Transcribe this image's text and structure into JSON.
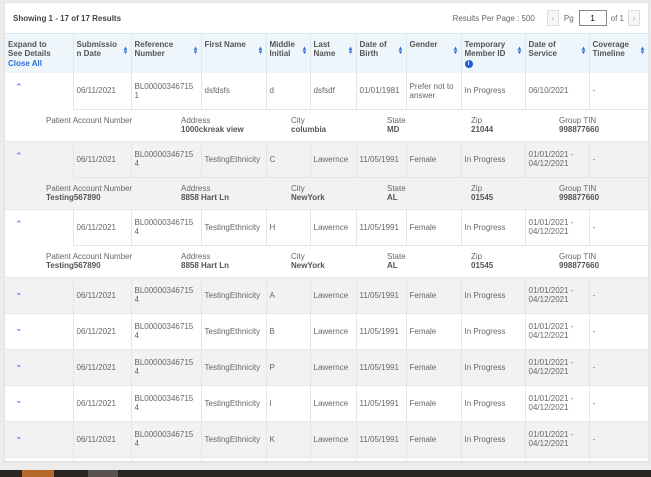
{
  "pagination": {
    "showing": "Showing 1 - 17 of 17 Results",
    "results_per_page": "Results Per Page : 500",
    "pg_label": "Pg",
    "page": "1",
    "of_label": "of 1",
    "prev_icon": "chevron-left",
    "next_icon": "chevron-right"
  },
  "header": {
    "expand": "Expand to See Details",
    "close_all": "Close All",
    "columns": [
      "Submission Date",
      "Reference Number",
      "First Name",
      "Middle Initial",
      "Last Name",
      "Date of Birth",
      "Gender",
      "Temporary Member ID",
      "Date of Service",
      "Coverage Timeline"
    ]
  },
  "detail_labels": [
    "Patient Account Number",
    "Address",
    "City",
    "State",
    "Zip",
    "Group TIN"
  ],
  "rows": [
    {
      "expanded": true,
      "cells": [
        "06/11/2021",
        "BL000003467151",
        "dsfdsfs",
        "d",
        "dsfsdf",
        "01/01/1981",
        "Prefer not to answer",
        "In Progress",
        "06/10/2021",
        "-"
      ],
      "detail": [
        "",
        "1000ckreak view",
        "columbia",
        "MD",
        "21044",
        "998877660"
      ]
    },
    {
      "expanded": true,
      "cells": [
        "06/11/2021",
        "BL000003467154",
        "TestingEthnicity",
        "C",
        "Lawernce",
        "11/05/1991",
        "Female",
        "In Progress",
        "01/01/2021 - 04/12/2021",
        "-"
      ],
      "detail": [
        "Testing567890",
        "8858 Hart Ln",
        "NewYork",
        "AL",
        "01545",
        "998877660"
      ]
    },
    {
      "expanded": true,
      "cells": [
        "06/11/2021",
        "BL000003467154",
        "TestingEthnicity",
        "H",
        "Lawernce",
        "11/05/1991",
        "Female",
        "In Progress",
        "01/01/2021 - 04/12/2021",
        "-"
      ],
      "detail": [
        "Testing567890",
        "8858 Hart Ln",
        "NewYork",
        "AL",
        "01545",
        "998877660"
      ]
    },
    {
      "expanded": false,
      "cells": [
        "06/11/2021",
        "BL000003467154",
        "TestingEthnicity",
        "A",
        "Lawernce",
        "11/05/1991",
        "Female",
        "In Progress",
        "01/01/2021 - 04/12/2021",
        "-"
      ]
    },
    {
      "expanded": false,
      "cells": [
        "06/11/2021",
        "BL000003467154",
        "TestingEthnicity",
        "B",
        "Lawernce",
        "11/05/1991",
        "Female",
        "In Progress",
        "01/01/2021 - 04/12/2021",
        "-"
      ]
    },
    {
      "expanded": false,
      "cells": [
        "06/11/2021",
        "BL000003467154",
        "TestingEthnicity",
        "P",
        "Lawernce",
        "11/05/1991",
        "Female",
        "In Progress",
        "01/01/2021 - 04/12/2021",
        "-"
      ]
    },
    {
      "expanded": false,
      "cells": [
        "06/11/2021",
        "BL000003467154",
        "TestingEthnicity",
        "I",
        "Lawernce",
        "11/05/1991",
        "Female",
        "In Progress",
        "01/01/2021 - 04/12/2021",
        "-"
      ]
    },
    {
      "expanded": false,
      "cells": [
        "06/11/2021",
        "BL000003467154",
        "TestingEthnicity",
        "K",
        "Lawernce",
        "11/05/1991",
        "Female",
        "In Progress",
        "01/01/2021 - 04/12/2021",
        "-"
      ]
    },
    {
      "expanded": false,
      "cells": [
        "",
        "",
        "",
        "",
        "",
        "",
        "",
        "",
        "",
        ""
      ]
    }
  ],
  "colors": {
    "accent": "#2f6fd6",
    "header_bg": "#eef6fb",
    "stripe": "#f2f2f2"
  }
}
